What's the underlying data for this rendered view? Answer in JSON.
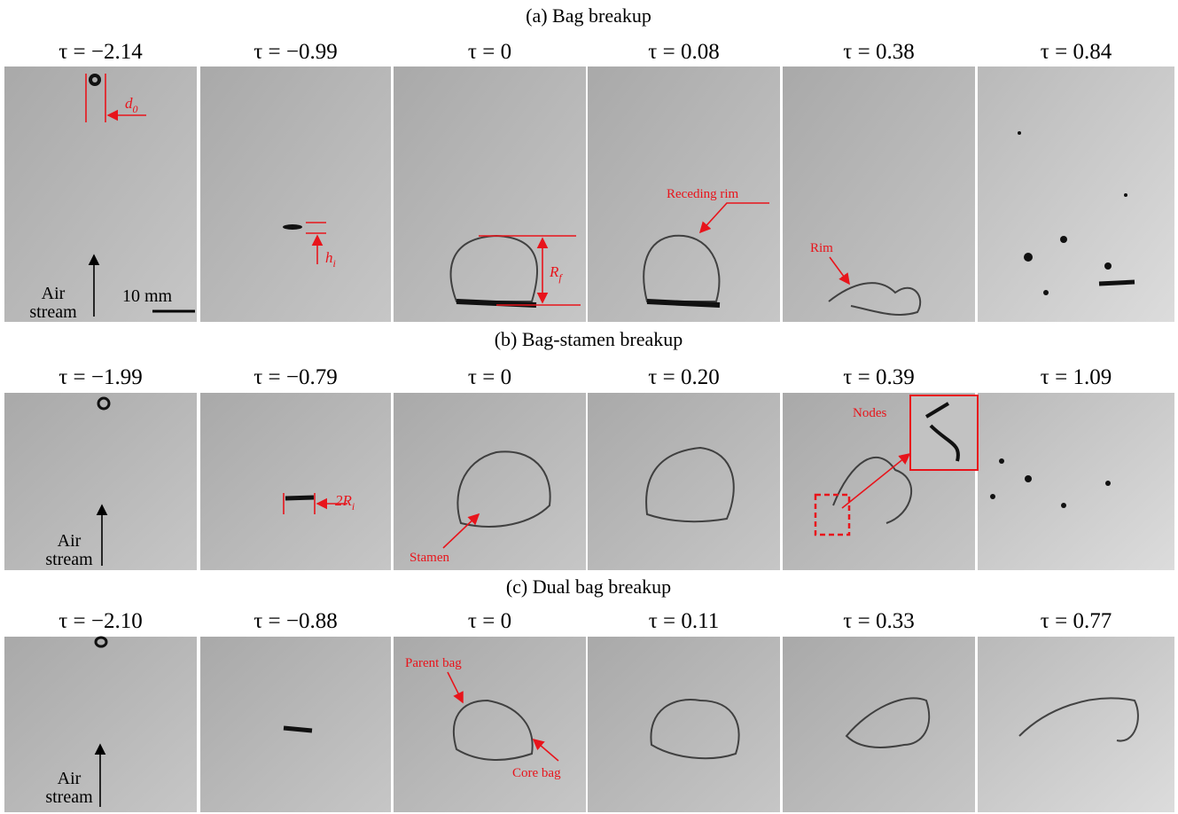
{
  "rows": [
    {
      "title": "(a) Bag breakup",
      "frames": [
        "τ = −2.14",
        "τ = −0.99",
        "τ = 0",
        "τ = 0.08",
        "τ = 0.38",
        "τ = 0.84"
      ]
    },
    {
      "title": "(b) Bag-stamen breakup",
      "frames": [
        "τ = −1.99",
        "τ = −0.79",
        "τ = 0",
        "τ = 0.20",
        "τ = 0.39",
        "τ = 1.09"
      ]
    },
    {
      "title": "(c) Dual bag breakup",
      "frames": [
        "τ = −2.10",
        "τ = −0.88",
        "τ = 0",
        "τ = 0.11",
        "τ = 0.33",
        "τ = 0.77"
      ]
    }
  ],
  "annotations": {
    "d0": {
      "main": "d",
      "sub": "0"
    },
    "hi": {
      "main": "h",
      "sub": "i"
    },
    "rf": {
      "main": "R",
      "sub": "f"
    },
    "two_ri": {
      "main": "2R",
      "sub": "i"
    },
    "receding_rim": "Receding rim",
    "rim": "Rim",
    "nodes": "Nodes",
    "stamen": "Stamen",
    "parent_bag": "Parent bag",
    "core_bag": "Core bag",
    "air_stream": [
      "Air",
      "stream"
    ],
    "scale": "10 mm"
  }
}
